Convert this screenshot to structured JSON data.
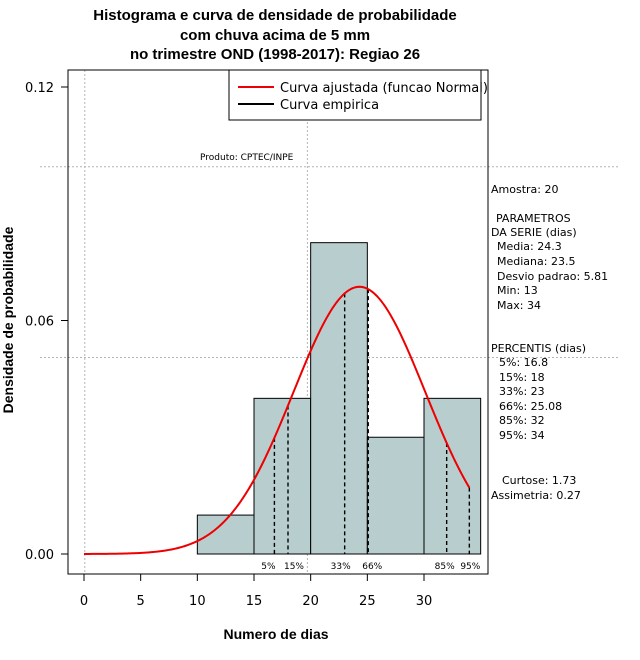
{
  "chart_data": {
    "type": "bar",
    "title_lines": [
      "Histograma e curva de densidade de probabilidade",
      "com chuva acima de 5 mm",
      "no trimestre OND (1998-2017): Regiao 26"
    ],
    "xlabel": "Numero de dias",
    "ylabel": "Densidade de probabilidade",
    "xlim": [
      -2,
      36
    ],
    "ylim": [
      -0.005,
      0.124
    ],
    "x_ticks": [
      0,
      5,
      10,
      15,
      20,
      25,
      30
    ],
    "y_ticks": [
      0.0,
      0.06,
      0.12
    ],
    "y_tick_labels": [
      "0.00",
      "0.06",
      "0.12"
    ],
    "grid": true,
    "bins": [
      {
        "start": 10,
        "end": 15,
        "density": 0.01
      },
      {
        "start": 15,
        "end": 20,
        "density": 0.04
      },
      {
        "start": 20,
        "end": 25,
        "density": 0.08
      },
      {
        "start": 25,
        "end": 30,
        "density": 0.03
      },
      {
        "start": 30,
        "end": 35,
        "density": 0.04
      }
    ],
    "bar_color": "#b8cece",
    "normal_fit": {
      "mean": 24.3,
      "sd": 5.81,
      "x_from": 0,
      "x_to": 34,
      "color": "#ee0000"
    },
    "percentile_lines": [
      {
        "label": "5%",
        "value": 16.8
      },
      {
        "label": "15%",
        "value": 18
      },
      {
        "label": "33%",
        "value": 23
      },
      {
        "label": "66%",
        "value": 25.08
      },
      {
        "label": "85%",
        "value": 32
      },
      {
        "label": "95%",
        "value": 34
      }
    ],
    "legend": [
      {
        "label": "Curva ajustada (funcao Normal)",
        "color": "#ee0000"
      },
      {
        "label": "Curva empirica",
        "color": "#000000"
      }
    ],
    "product_label": "Produto: CPTEC/INPE",
    "stats": {
      "sample": "Amostra: 20",
      "params_header_1": "PARAMETROS",
      "params_header_2": "DA SERIE (dias)",
      "media": "Media: 24.3",
      "mediana": "Mediana: 23.5",
      "desvio": "Desvio padrao: 5.81",
      "min": "Min: 13",
      "max": "Max: 34",
      "percentis_header": "PERCENTIS (dias)",
      "p5": "5%: 16.8",
      "p15": "15%: 18",
      "p33": "33%: 23",
      "p66": "66%: 25.08",
      "p85": "85%: 32",
      "p95": "95%: 34",
      "curtose": "Curtose: 1.73",
      "assimetria": "Assimetria: 0.27"
    }
  }
}
